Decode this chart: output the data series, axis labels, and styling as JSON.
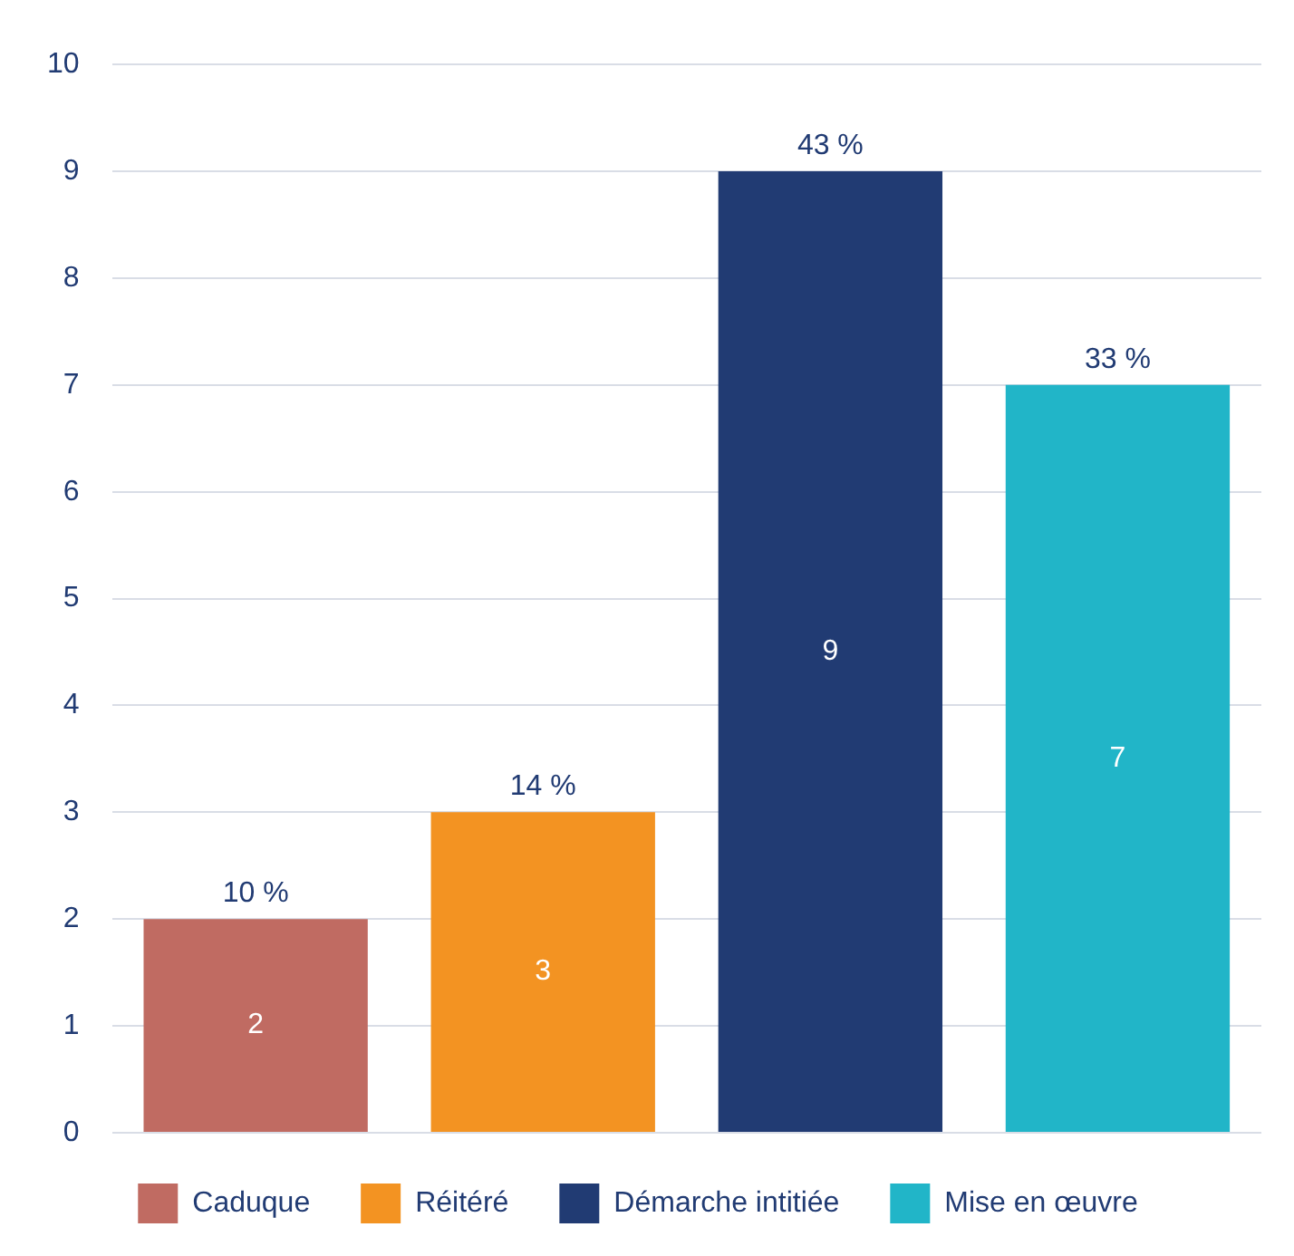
{
  "chart_data": {
    "type": "bar",
    "categories": [
      null,
      null,
      null,
      null
    ],
    "series": [
      {
        "name": "Caduque",
        "color": "#c06b62",
        "values": [
          2,
          null,
          null,
          null
        ]
      },
      {
        "name": "Réitéré",
        "color": "#f39322",
        "values": [
          null,
          3,
          null,
          null
        ]
      },
      {
        "name": "Démarche intitiée",
        "color": "#213b73",
        "values": [
          null,
          null,
          9,
          null
        ]
      },
      {
        "name": "Mise en œuvre",
        "color": "#21b5c8",
        "values": [
          null,
          null,
          null,
          7
        ]
      }
    ],
    "data_labels": true,
    "annotations": [
      "10 %",
      "14 %",
      "43 %",
      "33 %"
    ],
    "ylim": [
      0,
      10
    ],
    "yticks": [
      0,
      1,
      2,
      3,
      4,
      5,
      6,
      7,
      8,
      9,
      10
    ],
    "grid": "y",
    "legend": "bottom",
    "tick_labels": "y"
  }
}
